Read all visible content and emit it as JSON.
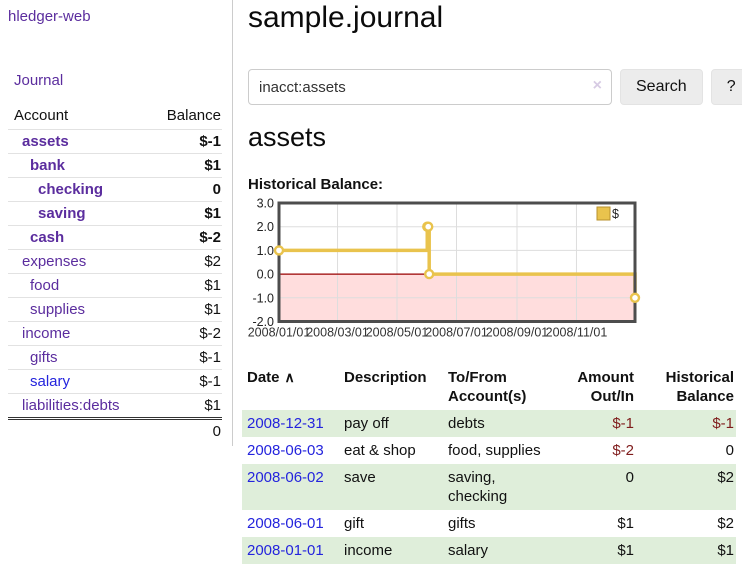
{
  "app": {
    "brand": "hledger-web",
    "nav_journal": "Journal"
  },
  "header": {
    "title": "sample.journal"
  },
  "search": {
    "value": "inacct:assets",
    "placeholder": "",
    "clear_icon": "×",
    "button_label": "Search",
    "help_label": "?"
  },
  "account_page": {
    "title": "assets",
    "chart_label": "Historical Balance:"
  },
  "colors": {
    "accent_purple": "#5b2d9e",
    "link_blue": "#2424dd",
    "negative_strong": "#7f1c1c",
    "negative_muted": "#b06a6a",
    "row_stripe_green": "#dfeeda",
    "chart_gold": "#e9c34d",
    "chart_negative_bg": "#ffdddd",
    "chart_zero_line": "#990000"
  },
  "sidebar": {
    "table": {
      "headers": [
        "Account",
        "Balance"
      ],
      "rows": [
        {
          "account": "assets",
          "balance": "$-1",
          "depth": 1,
          "bold": true,
          "account_color": "purple",
          "balance_color": "negative"
        },
        {
          "account": "bank",
          "balance": "$1",
          "depth": 2,
          "bold": true,
          "account_color": "purple",
          "balance_color": "black"
        },
        {
          "account": "checking",
          "balance": "0",
          "depth": 3,
          "bold": true,
          "account_color": "purple",
          "balance_color": "black"
        },
        {
          "account": "saving",
          "balance": "$1",
          "depth": 3,
          "bold": true,
          "account_color": "purple",
          "balance_color": "black"
        },
        {
          "account": "cash",
          "balance": "$-2",
          "depth": 2,
          "bold": true,
          "account_color": "purple",
          "balance_color": "negative"
        },
        {
          "account": "expenses",
          "balance": "$2",
          "depth": 1,
          "bold": false,
          "account_color": "purple",
          "balance_color": "black"
        },
        {
          "account": "food",
          "balance": "$1",
          "depth": 2,
          "bold": false,
          "account_color": "purple",
          "balance_color": "black"
        },
        {
          "account": "supplies",
          "balance": "$1",
          "depth": 2,
          "bold": false,
          "account_color": "purple",
          "balance_color": "black"
        },
        {
          "account": "income",
          "balance": "$-2",
          "depth": 1,
          "bold": false,
          "account_color": "purple",
          "balance_color": "negative_muted"
        },
        {
          "account": "gifts",
          "balance": "$-1",
          "depth": 2,
          "bold": false,
          "account_color": "purple",
          "balance_color": "negative_muted"
        },
        {
          "account": "salary",
          "balance": "$-1",
          "depth": 2,
          "bold": false,
          "account_color": "blue",
          "balance_color": "negative_muted"
        },
        {
          "account": "liabilities:debts",
          "balance": "$1",
          "depth": 1,
          "bold": false,
          "account_color": "purple",
          "balance_color": "black"
        }
      ],
      "total": "0"
    }
  },
  "chart_data": {
    "type": "line",
    "title": "Historical Balance",
    "step": true,
    "legend": "$",
    "legend_position": "top-right",
    "grid": true,
    "ylim": [
      -2,
      3
    ],
    "y_ticks": [
      3.0,
      2.0,
      1.0,
      0.0,
      -1.0,
      -2.0
    ],
    "xlim": [
      "2008/01/01",
      "2008/12/31"
    ],
    "x_ticks": [
      "2008/01/01",
      "2008/03/01",
      "2008/05/01",
      "2008/07/01",
      "2008/09/01",
      "2008/11/01"
    ],
    "points": [
      {
        "date": "2008-01-01",
        "value": 1.0
      },
      {
        "date": "2008-06-01",
        "value": 2.0
      },
      {
        "date": "2008-06-02",
        "value": 2.0
      },
      {
        "date": "2008-06-03",
        "value": 0.0
      },
      {
        "date": "2008-12-31",
        "value": -1.0
      }
    ],
    "colors": {
      "line": "#e9c34d",
      "negative_bg": "#ffdddd",
      "zero_line": "#990000"
    }
  },
  "register": {
    "headers": [
      "Date",
      "Description",
      "To/From Account(s)",
      "Amount Out/In",
      "Historical Balance"
    ],
    "sort_icon": "∧",
    "rows": [
      {
        "date": "2008-12-31",
        "description": "pay off",
        "accounts": "debts",
        "amount": "$-1",
        "balance": "$-1"
      },
      {
        "date": "2008-06-03",
        "description": "eat & shop",
        "accounts": "food, supplies",
        "amount": "$-2",
        "balance": "0"
      },
      {
        "date": "2008-06-02",
        "description": "save",
        "accounts": "saving, checking",
        "amount": "0",
        "balance": "$2"
      },
      {
        "date": "2008-06-01",
        "description": "gift",
        "accounts": "gifts",
        "amount": "$1",
        "balance": "$2"
      },
      {
        "date": "2008-01-01",
        "description": "income",
        "accounts": "salary",
        "amount": "$1",
        "balance": "$1"
      }
    ]
  }
}
